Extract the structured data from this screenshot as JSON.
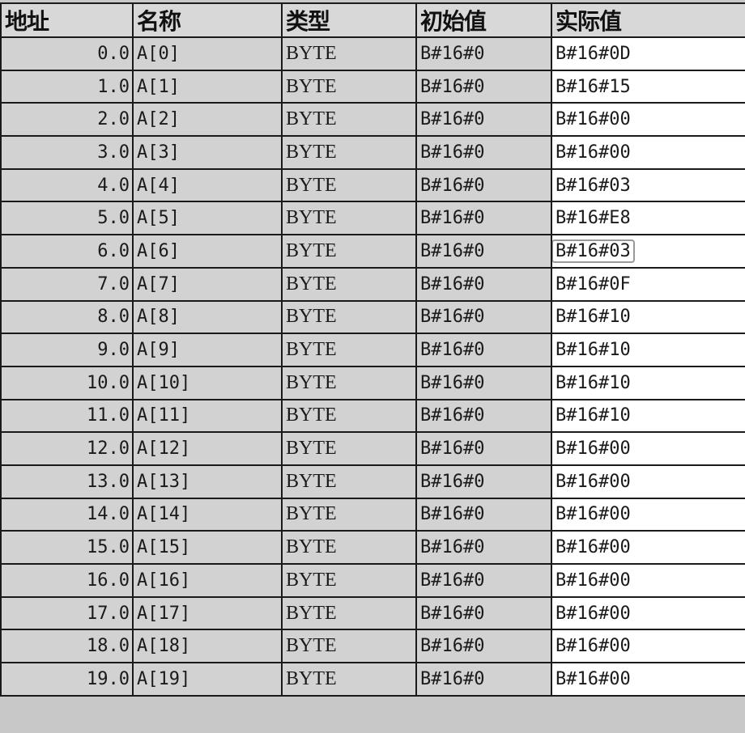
{
  "columns": [
    "地址",
    "名称",
    "类型",
    "初始值",
    "实际值"
  ],
  "selected_row": 6,
  "rows": [
    {
      "address": "0.0",
      "name": "A[0]",
      "type": "BYTE",
      "initial": "B#16#0",
      "actual": "B#16#0D"
    },
    {
      "address": "1.0",
      "name": "A[1]",
      "type": "BYTE",
      "initial": "B#16#0",
      "actual": "B#16#15"
    },
    {
      "address": "2.0",
      "name": "A[2]",
      "type": "BYTE",
      "initial": "B#16#0",
      "actual": "B#16#00"
    },
    {
      "address": "3.0",
      "name": "A[3]",
      "type": "BYTE",
      "initial": "B#16#0",
      "actual": "B#16#00"
    },
    {
      "address": "4.0",
      "name": "A[4]",
      "type": "BYTE",
      "initial": "B#16#0",
      "actual": "B#16#03"
    },
    {
      "address": "5.0",
      "name": "A[5]",
      "type": "BYTE",
      "initial": "B#16#0",
      "actual": "B#16#E8"
    },
    {
      "address": "6.0",
      "name": "A[6]",
      "type": "BYTE",
      "initial": "B#16#0",
      "actual": "B#16#03"
    },
    {
      "address": "7.0",
      "name": "A[7]",
      "type": "BYTE",
      "initial": "B#16#0",
      "actual": "B#16#0F"
    },
    {
      "address": "8.0",
      "name": "A[8]",
      "type": "BYTE",
      "initial": "B#16#0",
      "actual": "B#16#10"
    },
    {
      "address": "9.0",
      "name": "A[9]",
      "type": "BYTE",
      "initial": "B#16#0",
      "actual": "B#16#10"
    },
    {
      "address": "10.0",
      "name": "A[10]",
      "type": "BYTE",
      "initial": "B#16#0",
      "actual": "B#16#10"
    },
    {
      "address": "11.0",
      "name": "A[11]",
      "type": "BYTE",
      "initial": "B#16#0",
      "actual": "B#16#10"
    },
    {
      "address": "12.0",
      "name": "A[12]",
      "type": "BYTE",
      "initial": "B#16#0",
      "actual": "B#16#00"
    },
    {
      "address": "13.0",
      "name": "A[13]",
      "type": "BYTE",
      "initial": "B#16#0",
      "actual": "B#16#00"
    },
    {
      "address": "14.0",
      "name": "A[14]",
      "type": "BYTE",
      "initial": "B#16#0",
      "actual": "B#16#00"
    },
    {
      "address": "15.0",
      "name": "A[15]",
      "type": "BYTE",
      "initial": "B#16#0",
      "actual": "B#16#00"
    },
    {
      "address": "16.0",
      "name": "A[16]",
      "type": "BYTE",
      "initial": "B#16#0",
      "actual": "B#16#00"
    },
    {
      "address": "17.0",
      "name": "A[17]",
      "type": "BYTE",
      "initial": "B#16#0",
      "actual": "B#16#00"
    },
    {
      "address": "18.0",
      "name": "A[18]",
      "type": "BYTE",
      "initial": "B#16#0",
      "actual": "B#16#00"
    },
    {
      "address": "19.0",
      "name": "A[19]",
      "type": "BYTE",
      "initial": "B#16#0",
      "actual": "B#16#00"
    }
  ]
}
